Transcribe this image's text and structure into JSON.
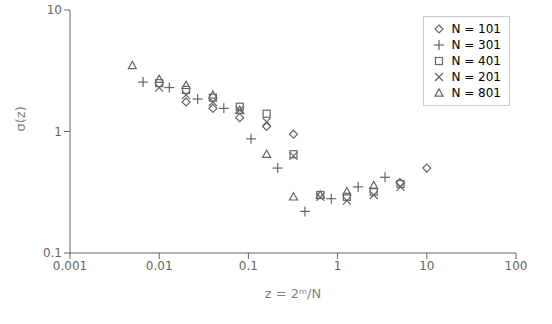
{
  "chart_data": {
    "type": "scatter",
    "x_label": "z = 2ᵐ/N",
    "y_label": "σ(z)",
    "log": true,
    "grid": false,
    "legend": "upper right",
    "xlim": [
      0.001,
      100
    ],
    "ylim": [
      0.1,
      10
    ],
    "xticks": [
      0.001,
      0.01,
      0.1,
      1,
      10,
      100
    ],
    "yticks": [
      0.1,
      1,
      10
    ],
    "series": [
      {
        "name": "N = 101",
        "color": "#666666",
        "marker": "diamond",
        "x": [
          0.02,
          0.04,
          0.08,
          0.16,
          0.32,
          5.0,
          10.0
        ],
        "values": [
          1.75,
          1.55,
          1.3,
          1.1,
          0.95,
          0.38,
          0.5
        ]
      },
      {
        "name": "N = 301",
        "color": "#666666",
        "marker": "plus",
        "x": [
          0.0066,
          0.013,
          0.027,
          0.053,
          0.107,
          0.213,
          0.43,
          0.85,
          1.7,
          3.4
        ],
        "values": [
          2.55,
          2.3,
          1.85,
          1.55,
          0.87,
          0.5,
          0.22,
          0.28,
          0.35,
          0.42
        ]
      },
      {
        "name": "N = 401",
        "color": "#666666",
        "marker": "square",
        "x": [
          0.01,
          0.02,
          0.04,
          0.08,
          0.16,
          0.32,
          0.64,
          1.27,
          2.54,
          5.08
        ],
        "values": [
          2.5,
          2.2,
          1.9,
          1.6,
          1.4,
          0.65,
          0.3,
          0.29,
          0.32,
          0.37
        ]
      },
      {
        "name": "N = 201",
        "color": "#666666",
        "marker": "x",
        "x": [
          0.01,
          0.02,
          0.04,
          0.08,
          0.16,
          0.32,
          0.64,
          1.27,
          2.54,
          5.08
        ],
        "values": [
          2.3,
          2.0,
          1.75,
          1.5,
          1.2,
          0.63,
          0.29,
          0.27,
          0.3,
          0.35
        ]
      },
      {
        "name": "N = 801",
        "color": "#666666",
        "marker": "triangle",
        "x": [
          0.005,
          0.01,
          0.02,
          0.04,
          0.08,
          0.16,
          0.32,
          0.64,
          1.27,
          2.54
        ],
        "values": [
          3.5,
          2.7,
          2.4,
          2.0,
          1.5,
          0.65,
          0.29,
          0.3,
          0.32,
          0.36
        ]
      }
    ]
  }
}
